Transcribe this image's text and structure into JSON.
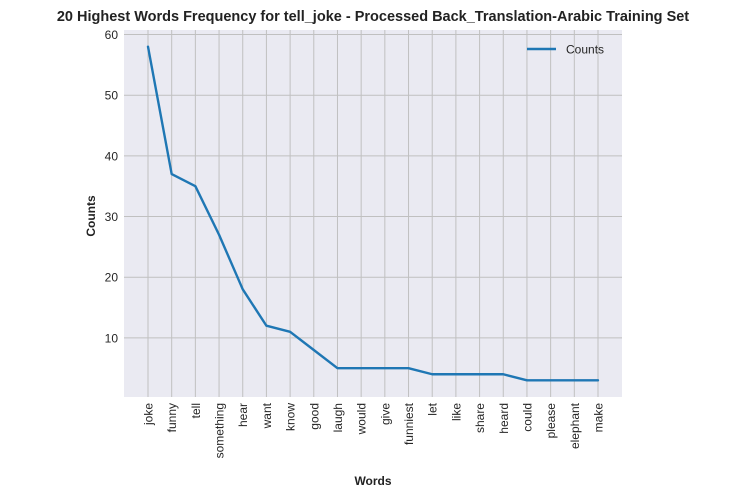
{
  "chart_data": {
    "type": "line",
    "title": "20 Highest Words Frequency for tell_joke - Processed Back_Translation-Arabic Training Set",
    "xlabel": "Words",
    "ylabel": "Counts",
    "categories": [
      "joke",
      "funny",
      "tell",
      "something",
      "hear",
      "want",
      "know",
      "good",
      "laugh",
      "would",
      "give",
      "funniest",
      "let",
      "like",
      "share",
      "heard",
      "could",
      "please",
      "elephant",
      "make"
    ],
    "series": [
      {
        "name": "Counts",
        "values": [
          58,
          37,
          35,
          27,
          18,
          12,
          11,
          8,
          5,
          5,
          5,
          5,
          4,
          4,
          4,
          4,
          3,
          3,
          3,
          3
        ],
        "color": "#1f77b4"
      }
    ],
    "yticks": [
      10,
      20,
      30,
      40,
      50,
      60
    ],
    "ylim": [
      0.25,
      60.75
    ],
    "grid": true,
    "legend_position": "top-right",
    "colors": {
      "plot_bg": "#eaeaf2",
      "grid": "#c0c0c0",
      "line": "#1f77b4"
    }
  }
}
